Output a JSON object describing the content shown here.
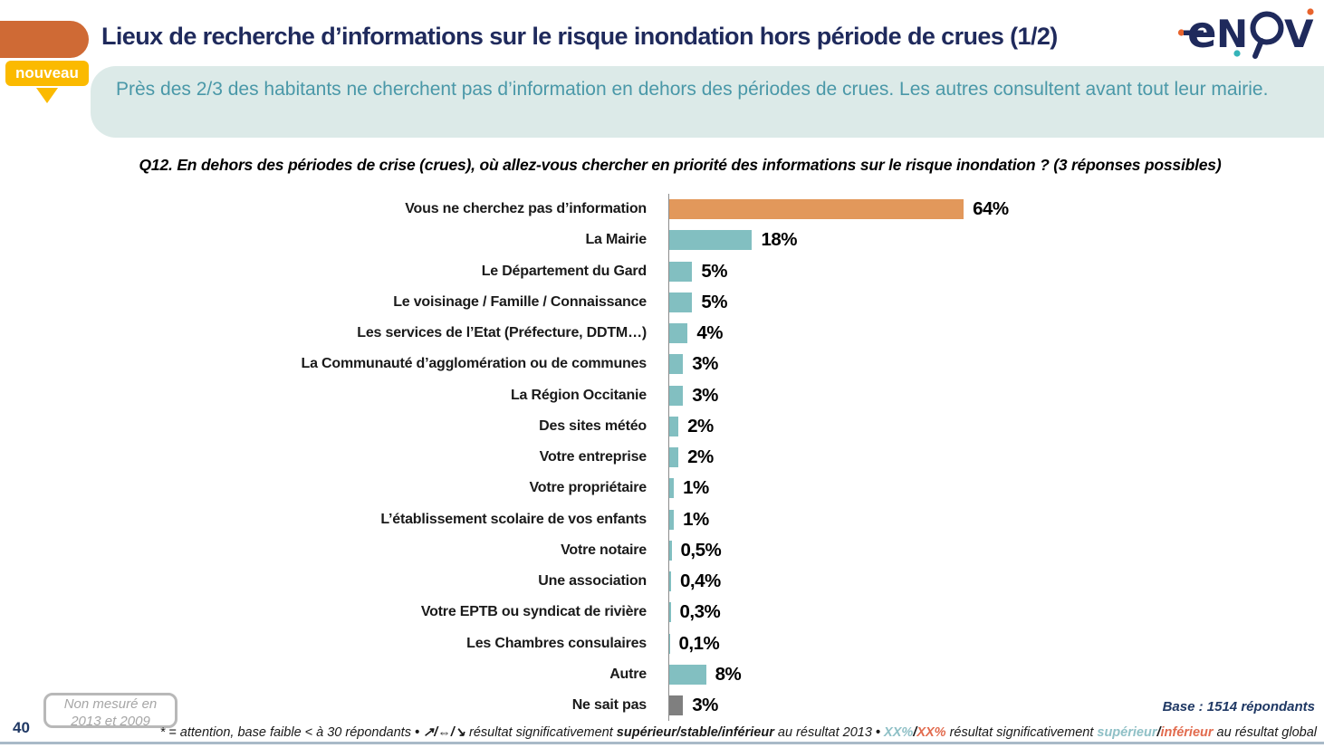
{
  "header": {
    "title": "Lieux de recherche d’informations sur le risque inondation hors période de crues (1/2)",
    "badge": "nouveau",
    "summary": "Près des 2/3 des habitants ne cherchent pas d’information en dehors des périodes de crues. Les autres consultent avant tout leur mairie."
  },
  "logo": {
    "brand": "enov",
    "letters": [
      "e",
      "N",
      "V"
    ]
  },
  "question": "Q12. En dehors des périodes de crise (crues), où allez-vous chercher en priorité des informations sur le risque inondation ? (3 réponses possibles)",
  "chart_data": {
    "type": "bar",
    "orientation": "horizontal",
    "title": "",
    "xlabel": "",
    "ylabel": "",
    "xlim": [
      0,
      100
    ],
    "grid": false,
    "categories": [
      "Vous ne cherchez pas d’information",
      "La Mairie",
      "Le Département du Gard",
      "Le voisinage / Famille / Connaissance",
      "Les services de l’Etat (Préfecture, DDTM…)",
      "La Communauté d’agglomération ou de communes",
      "La Région Occitanie",
      "Des sites météo",
      "Votre entreprise",
      "Votre propriétaire",
      "L’établissement scolaire de vos enfants",
      "Votre notaire",
      "Une association",
      "Votre EPTB ou syndicat de rivière",
      "Les Chambres consulaires",
      "Autre",
      "Ne sait pas"
    ],
    "values": [
      64,
      18,
      5,
      5,
      4,
      3,
      3,
      2,
      2,
      1,
      1,
      0.5,
      0.4,
      0.3,
      0.1,
      8,
      3
    ],
    "value_labels": [
      "64%",
      "18%",
      "5%",
      "5%",
      "4%",
      "3%",
      "3%",
      "2%",
      "2%",
      "1%",
      "1%",
      "0,5%",
      "0,4%",
      "0,3%",
      "0,1%",
      "8%",
      "3%"
    ],
    "bar_colors": [
      "#E2985B",
      "#82BFC1",
      "#82BFC1",
      "#82BFC1",
      "#82BFC1",
      "#82BFC1",
      "#82BFC1",
      "#82BFC1",
      "#82BFC1",
      "#82BFC1",
      "#82BFC1",
      "#82BFC1",
      "#82BFC1",
      "#82BFC1",
      "#82BFC1",
      "#82BFC1",
      "#7F7F7F"
    ],
    "colors": {
      "highlight": "#E2985B",
      "default": "#82BFC1",
      "neutral": "#7F7F7F"
    }
  },
  "footer": {
    "page_number": "40",
    "note_box_line1": "Non mesuré en",
    "note_box_line2": "2013 et 2009",
    "base": "Base : 1514 répondants",
    "legend": {
      "part1": "* = attention, base faible < à 30 répondants ",
      "bullet1": "• ",
      "arrows": "↗/⇔/↘",
      "part2": " résultat significativement ",
      "bold1": "supérieur/stable/inférieur",
      "part3": " au résultat 2013 ",
      "bullet2": "• ",
      "xx_sup": "XX%",
      "slash1": "/",
      "xx_inf": "XX%",
      "part4": " résultat significativement ",
      "sup_word": "supérieur",
      "slash2": "/",
      "inf_word": "inférieur",
      "part5": " au résultat global"
    }
  }
}
